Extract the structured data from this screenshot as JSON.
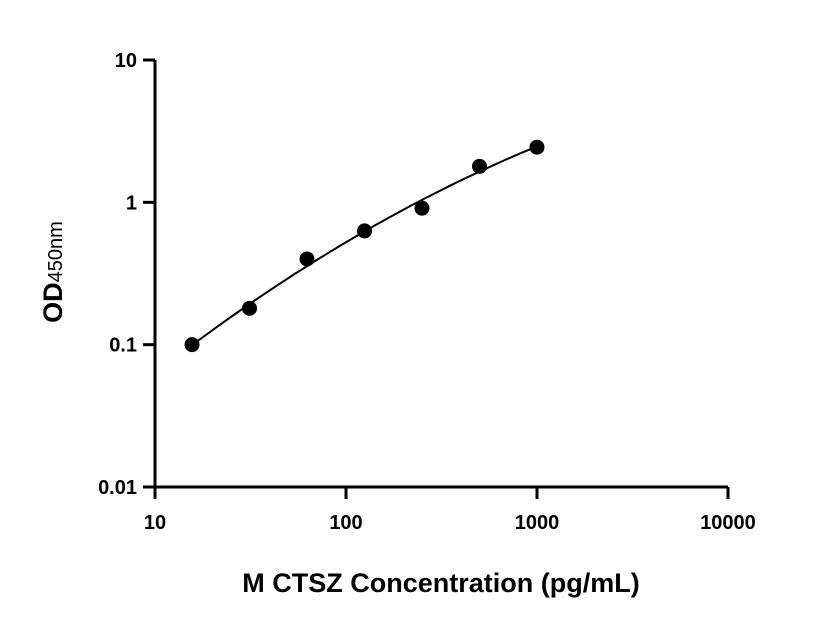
{
  "chart_data": {
    "type": "scatter",
    "title": "",
    "xlabel": "M CTSZ Concentration (pg/mL)",
    "ylabel": "OD",
    "ylabel_subscript": "450nm",
    "x_scale": "log",
    "y_scale": "log",
    "xlim": [
      10,
      10000
    ],
    "ylim": [
      0.01,
      10
    ],
    "x_ticks": [
      "10",
      "100",
      "1000",
      "10000"
    ],
    "y_ticks": [
      "0.01",
      "0.1",
      "1",
      "10"
    ],
    "grid": false,
    "fit_curve": true,
    "marker_color": "#000000",
    "series": [
      {
        "x": [
          15.625,
          31.25,
          62.5,
          125,
          250,
          500,
          1000
        ],
        "y": [
          0.1,
          0.18,
          0.4,
          0.63,
          0.91,
          1.79,
          2.44
        ]
      }
    ]
  }
}
